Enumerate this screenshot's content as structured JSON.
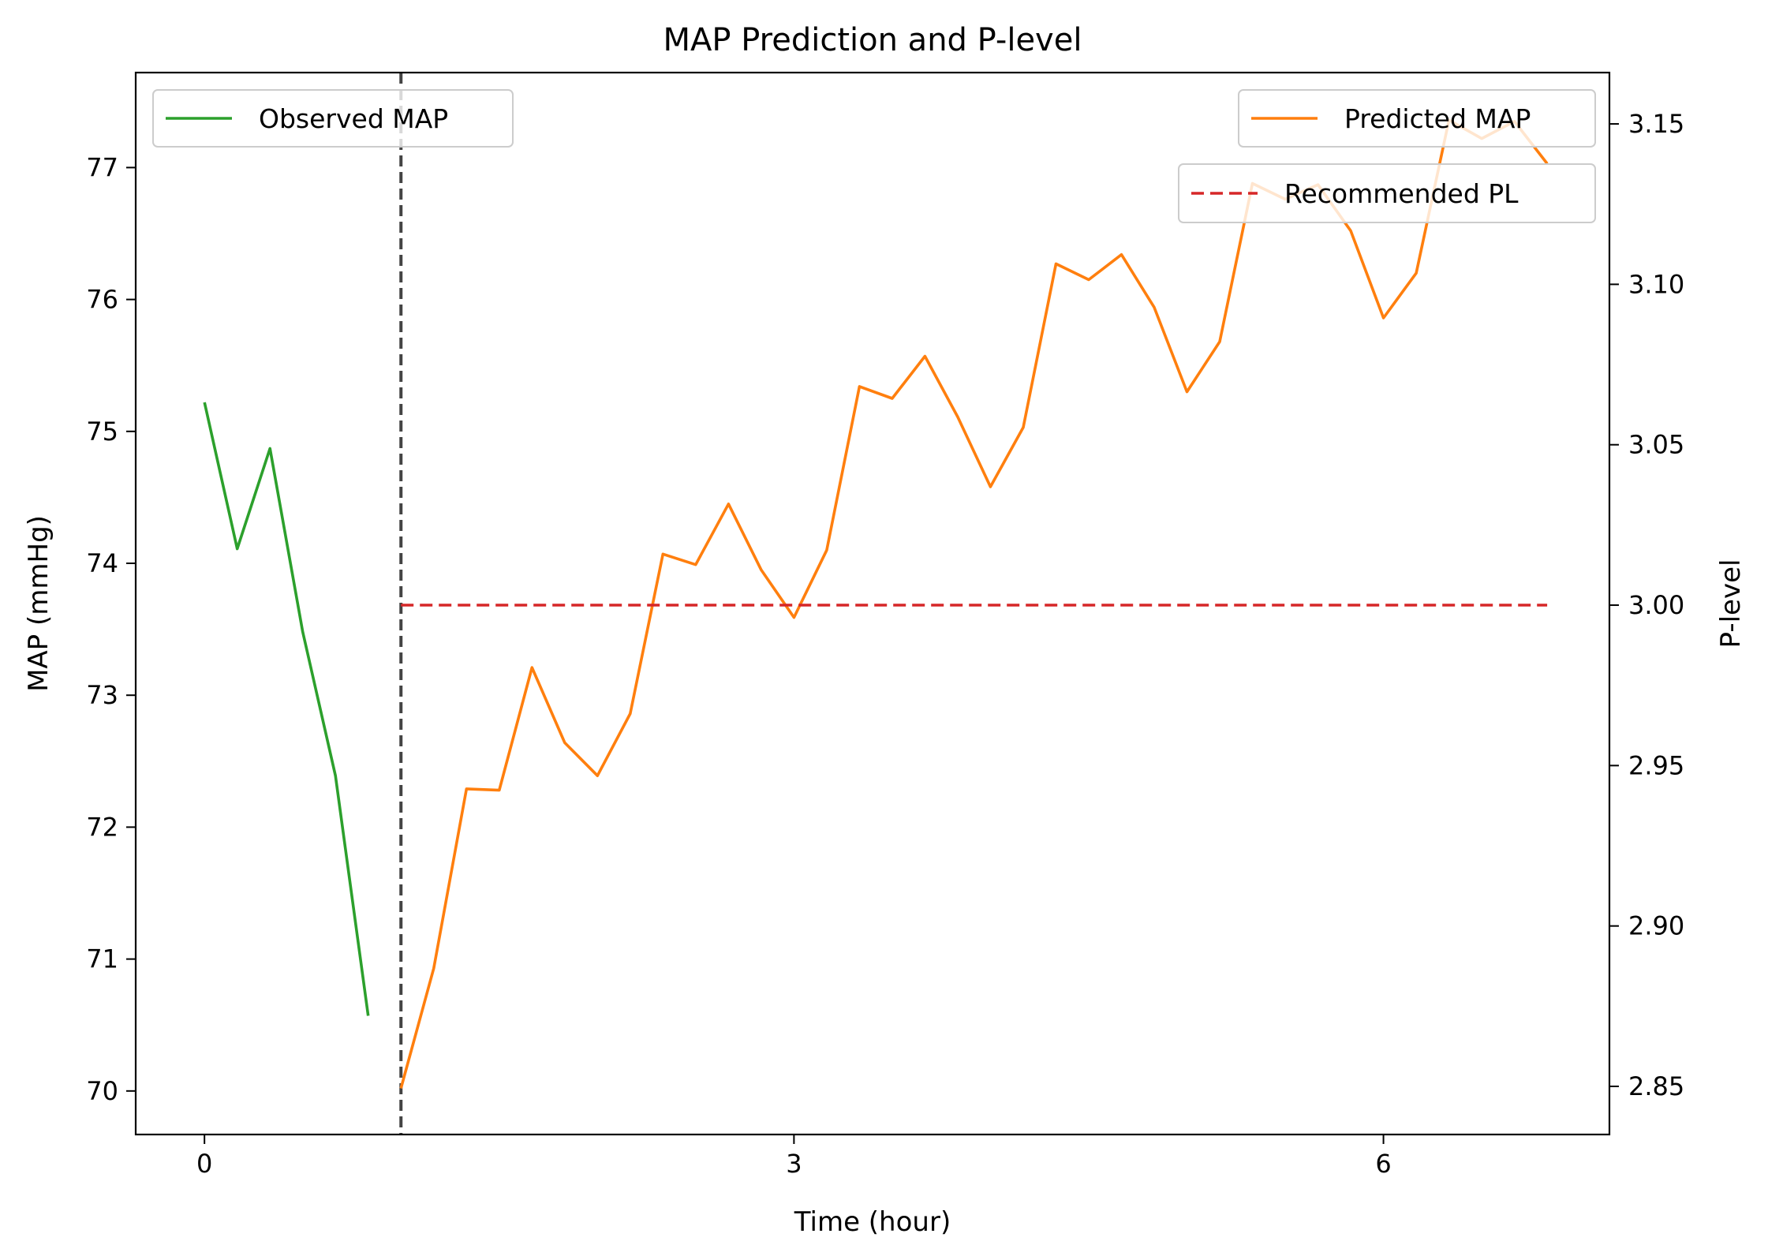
{
  "chart_data": {
    "type": "line",
    "title": "MAP Prediction and P-level",
    "xlabel": "Time (hour)",
    "ylabel": "MAP (mmHg)",
    "y2label": "P-level",
    "xlim": [
      -0.35,
      7.15
    ],
    "ylim": [
      69.67,
      77.72
    ],
    "y2lim": [
      2.835,
      3.166
    ],
    "xticks": [
      0,
      3,
      6
    ],
    "xtick_labels": [
      "0",
      "3",
      "6"
    ],
    "yticks": [
      70,
      71,
      72,
      73,
      74,
      75,
      76,
      77
    ],
    "ytick_labels": [
      "70",
      "71",
      "72",
      "73",
      "74",
      "75",
      "76",
      "77"
    ],
    "y2ticks": [
      2.85,
      2.9,
      2.95,
      3.0,
      3.05,
      3.1,
      3.15
    ],
    "y2tick_labels": [
      "2.85",
      "2.90",
      "2.95",
      "3.00",
      "3.05",
      "3.10",
      "3.15"
    ],
    "cutoff_x": 1.0,
    "series": [
      {
        "name": "Observed MAP",
        "axis": "left",
        "color": "#2ca02c",
        "style": "solid",
        "x": [
          0,
          0.1667,
          0.3333,
          0.5,
          0.6667,
          0.8333
        ],
        "y": [
          75.22,
          74.11,
          74.87,
          73.48,
          72.39,
          70.57
        ]
      },
      {
        "name": "Predicted MAP",
        "axis": "left",
        "color": "#ff7f0e",
        "style": "solid",
        "x": [
          1.0,
          1.1667,
          1.3333,
          1.5,
          1.6667,
          1.8333,
          2.0,
          2.1667,
          2.3333,
          2.5,
          2.6667,
          2.8333,
          3.0,
          3.1667,
          3.3333,
          3.5,
          3.6667,
          3.8333,
          4.0,
          4.1667,
          4.3333,
          4.5,
          4.6667,
          4.8333,
          5.0,
          5.1667,
          5.3333,
          5.5,
          5.6667,
          5.8333,
          6.0,
          6.1667,
          6.3333,
          6.5,
          6.6667,
          6.8333
        ],
        "y": [
          70.02,
          70.93,
          72.29,
          72.28,
          73.21,
          72.64,
          72.39,
          72.86,
          74.07,
          73.99,
          74.45,
          73.95,
          73.59,
          74.1,
          75.34,
          75.25,
          75.57,
          75.11,
          74.58,
          75.03,
          76.27,
          76.15,
          76.34,
          75.94,
          75.3,
          75.68,
          76.88,
          76.76,
          76.87,
          76.52,
          75.86,
          76.2,
          77.36,
          77.22,
          77.35,
          77.03
        ]
      },
      {
        "name": "Recommended PL",
        "axis": "right",
        "color": "#d62728",
        "style": "dashed",
        "x": [
          1.0,
          6.8333
        ],
        "y": [
          3.0,
          3.0
        ]
      }
    ],
    "legend_left": [
      "Observed MAP"
    ],
    "legend_right": [
      "Predicted MAP",
      "Recommended PL"
    ],
    "legend_left_placement": "top-left",
    "legend_right_placement": "top-right",
    "grid": false
  }
}
